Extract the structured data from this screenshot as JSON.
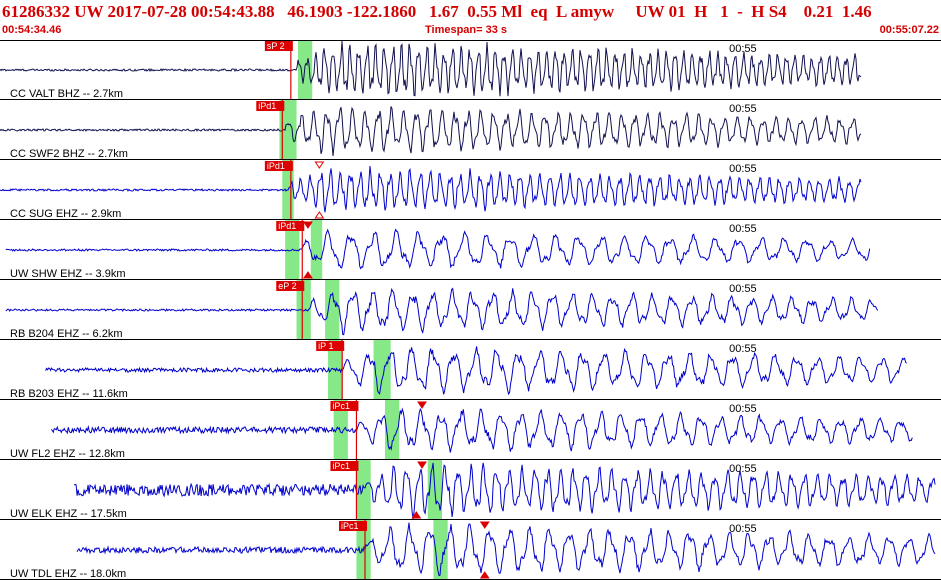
{
  "header": {
    "title": "61286332 UW 2017-07-28 00:54:43.88   46.1903 -122.1860   1.67  0.55 Ml  eq  L amyw     UW 01  H   1  -  H S4    0.21  1.46",
    "start_time": "00:54:34.46",
    "timespan": "Timespan=  33 s",
    "end_time": "00:55:07.22"
  },
  "colors": {
    "header_text": "#d40000",
    "pick": "#dd0000",
    "green_band": "#86e886",
    "trace_dark": "#101050",
    "trace_blue": "#0000cc",
    "divider": "#000000"
  },
  "chart_data": {
    "type": "line",
    "title": "61286332 UW 2017-07-28 00:54:43.88",
    "x_range_s": [
      0,
      33
    ],
    "minute_mark": {
      "label": "00:55",
      "t": 25.5
    },
    "traces": [
      {
        "label": "CC VALT BHZ -- 2.7km",
        "color": "#101050",
        "start": 0.0,
        "end": 30.2,
        "onset": 10.4,
        "amp_noise": 1,
        "amp_signal": 28,
        "period": 0.3,
        "phase_label": "sP 2",
        "pick_t": 10.2,
        "green": [
          [
            10.45,
            10.95
          ]
        ],
        "triangles": []
      },
      {
        "label": "CC SWF2 BHZ -- 2.7km",
        "color": "#101050",
        "start": 0.0,
        "end": 30.2,
        "onset": 10.0,
        "amp_noise": 1,
        "amp_signal": 24,
        "period": 0.45,
        "phase_label": "iPd1",
        "pick_t": 9.9,
        "green": [
          [
            9.8,
            10.4
          ]
        ],
        "triangles": []
      },
      {
        "label": "CC SUG EHZ -- 2.9km",
        "color": "#0000cc",
        "start": 0.0,
        "end": 30.2,
        "onset": 10.1,
        "amp_noise": 1,
        "amp_signal": 22,
        "period": 0.35,
        "phase_label": "iPd1",
        "pick_t": 10.2,
        "green": [
          [
            9.9,
            10.3
          ]
        ],
        "triangles": [
          {
            "t": 11.2,
            "dir": "down-open",
            "pos": "top"
          },
          {
            "t": 11.2,
            "dir": "up-open",
            "pos": "bottom"
          }
        ]
      },
      {
        "label": "UW SHW EHZ -- 3.9km",
        "color": "#0000cc",
        "start": 0.2,
        "end": 30.5,
        "onset": 10.5,
        "amp_noise": 1,
        "amp_signal": 20,
        "period": 0.8,
        "phase_label": "iPd1",
        "pick_t": 10.6,
        "green": [
          [
            10.0,
            10.5
          ],
          [
            10.9,
            11.3
          ]
        ],
        "triangles": [
          {
            "t": 10.8,
            "dir": "down",
            "pos": "top"
          },
          {
            "t": 10.8,
            "dir": "up",
            "pos": "bottom"
          }
        ]
      },
      {
        "label": "RB B204 EHZ -- 6.2km",
        "color": "#0000cc",
        "start": 0.2,
        "end": 30.8,
        "onset": 10.8,
        "amp_noise": 1,
        "amp_signal": 22,
        "period": 0.7,
        "phase_label": "eP 2",
        "pick_t": 10.6,
        "green": [
          [
            10.4,
            10.9
          ],
          [
            11.4,
            11.9
          ]
        ],
        "triangles": []
      },
      {
        "label": "RB B203 EHZ -- 11.6km",
        "color": "#0000cc",
        "start": 1.6,
        "end": 31.8,
        "onset": 12.0,
        "amp_noise": 2,
        "amp_signal": 24,
        "period": 0.75,
        "phase_label": "iP 1",
        "pick_t": 12.0,
        "green": [
          [
            11.5,
            12.0
          ],
          [
            13.1,
            13.7
          ]
        ],
        "triangles": []
      },
      {
        "label": "UW FL2 EHZ -- 12.8km",
        "color": "#0000cc",
        "start": 1.8,
        "end": 32.0,
        "onset": 12.5,
        "amp_noise": 3,
        "amp_signal": 22,
        "period": 0.7,
        "phase_label": "iPc1",
        "pick_t": 12.5,
        "green": [
          [
            11.7,
            12.2
          ],
          [
            13.5,
            14.0
          ]
        ],
        "triangles": [
          {
            "t": 14.8,
            "dir": "down",
            "pos": "top"
          }
        ]
      },
      {
        "label": "UW ELK EHZ -- 17.5km",
        "color": "#0000cc",
        "start": 2.6,
        "end": 32.8,
        "onset": 12.8,
        "amp_noise": 6,
        "amp_signal": 26,
        "period": 0.45,
        "phase_label": "iPc1",
        "pick_t": 12.5,
        "green": [
          [
            12.5,
            13.0
          ],
          [
            15.0,
            15.5
          ]
        ],
        "triangles": [
          {
            "t": 14.8,
            "dir": "down",
            "pos": "top"
          },
          {
            "t": 14.6,
            "dir": "up",
            "pos": "bottom"
          }
        ]
      },
      {
        "label": "UW TDL EHZ -- 18.0km",
        "color": "#0000cc",
        "start": 2.7,
        "end": 32.8,
        "onset": 12.8,
        "amp_noise": 3,
        "amp_signal": 26,
        "period": 0.7,
        "phase_label": "iPc1",
        "pick_t": 12.8,
        "green": [
          [
            12.5,
            13.0
          ],
          [
            15.2,
            15.7
          ]
        ],
        "triangles": [
          {
            "t": 17.0,
            "dir": "down",
            "pos": "top"
          },
          {
            "t": 17.0,
            "dir": "up",
            "pos": "bottom"
          }
        ]
      }
    ]
  }
}
